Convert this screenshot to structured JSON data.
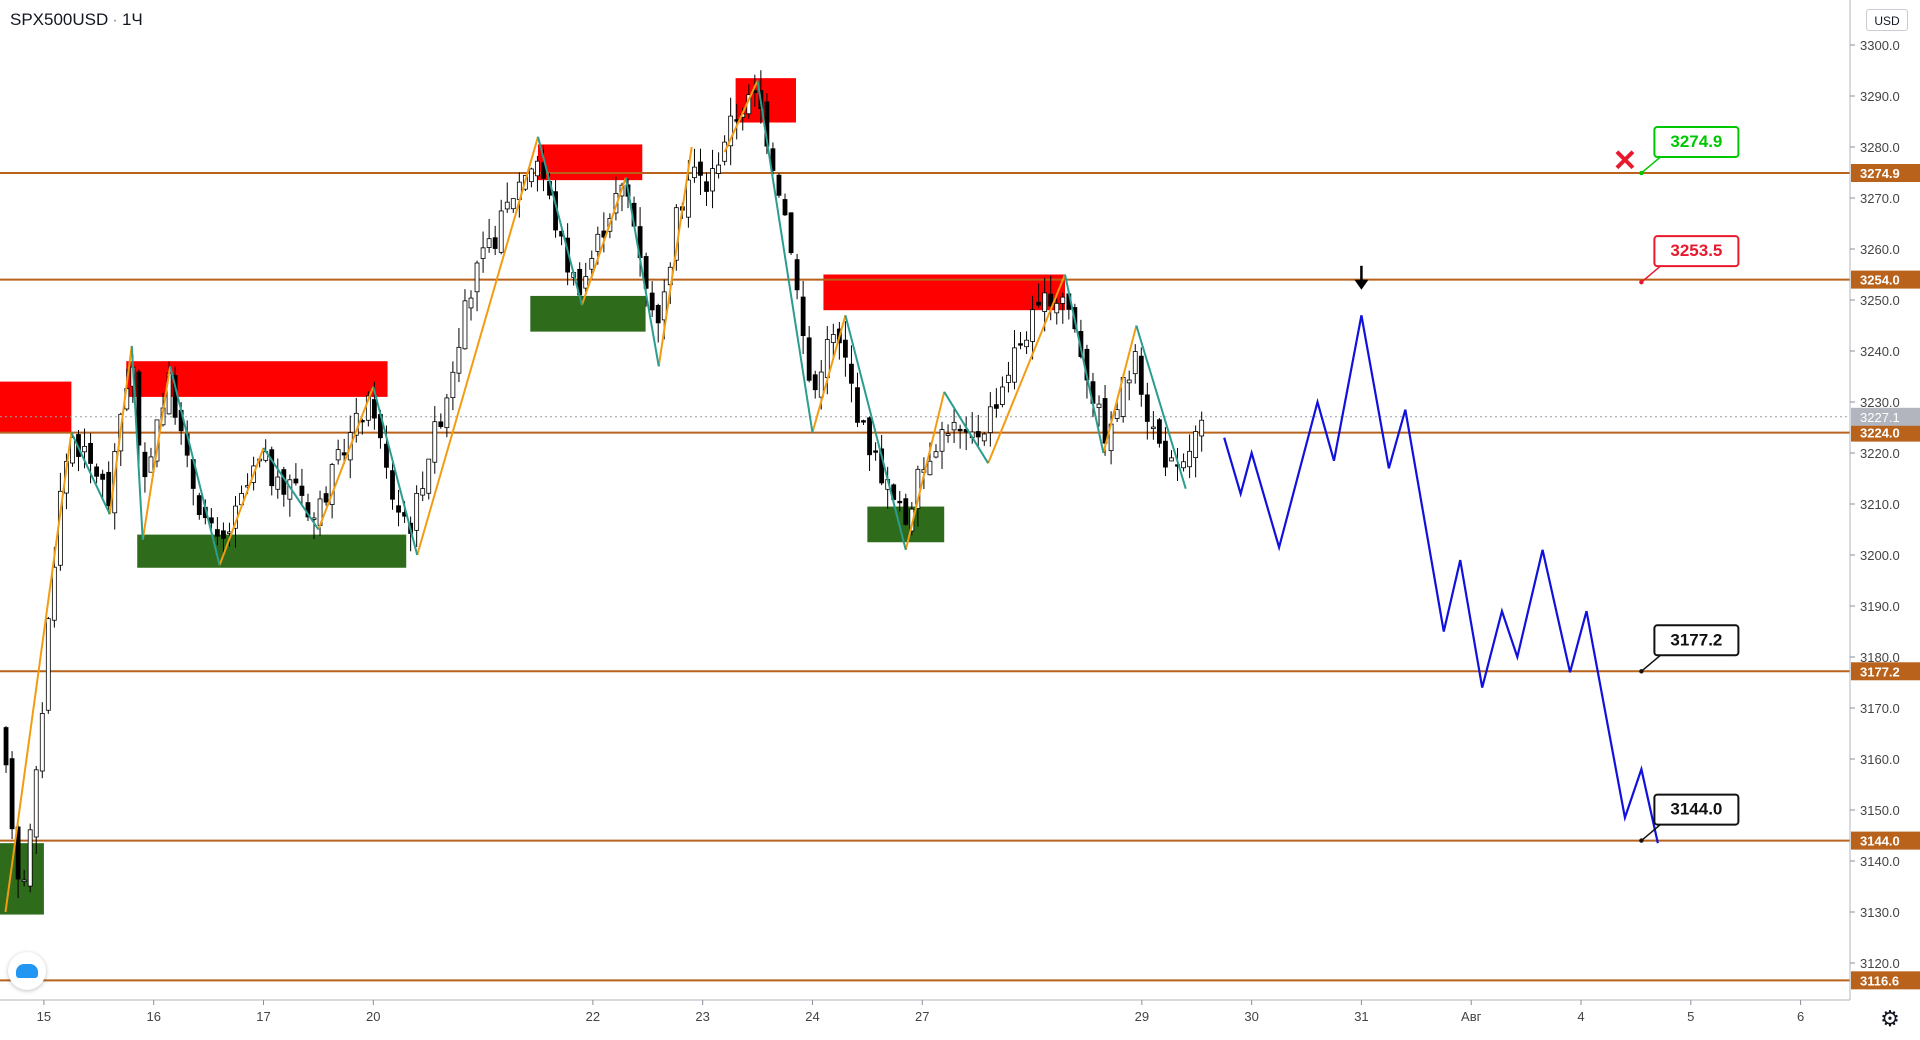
{
  "header": {
    "symbol": "SPX500USD",
    "interval": "1Ч",
    "currency": "USD"
  },
  "icons": {
    "settings": "gear-icon",
    "logo": "tradingview-logo",
    "invalidated_marker": "red-x-icon",
    "down_marker": "down-arrow-icon"
  },
  "colors": {
    "level_line": "#b8621b",
    "supply_zone": "#ff0000",
    "demand_zone": "#2e6b1a",
    "forecast": "#1111dd",
    "zigzag_up": "#f39c12",
    "zigzag_down": "#2a9d8f",
    "target_green": "#00c800",
    "target_red": "#e8192c",
    "target_black": "#111111",
    "current_price_bg": "#b2b5be"
  },
  "chart_data": {
    "type": "candlestick",
    "title": "",
    "xlabel": "",
    "ylabel": "",
    "ylim": [
      3110,
      3305
    ],
    "price_ticks": [
      3120.0,
      3130.0,
      3140.0,
      3150.0,
      3160.0,
      3170.0,
      3180.0,
      3190.0,
      3200.0,
      3210.0,
      3220.0,
      3230.0,
      3240.0,
      3250.0,
      3260.0,
      3270.0,
      3280.0,
      3290.0,
      3300.0
    ],
    "price_tick_labels": [
      "3120.0",
      "3130.0",
      "3140.0",
      "3150.0",
      "3160.0",
      "3170.0",
      "3180.0",
      "3190.0",
      "3200.0",
      "3210.0",
      "3220.0",
      "3230.0",
      "3240.0",
      "3250.0",
      "3260.0",
      "3270.0",
      "3280.0",
      "3290.0",
      "3300.0"
    ],
    "date_ticks": [
      {
        "label": "15",
        "x": 15
      },
      {
        "label": "16",
        "x": 16
      },
      {
        "label": "17",
        "x": 17
      },
      {
        "label": "20",
        "x": 18
      },
      {
        "label": "22",
        "x": 20
      },
      {
        "label": "23",
        "x": 21
      },
      {
        "label": "24",
        "x": 22
      },
      {
        "label": "27",
        "x": 23
      },
      {
        "label": "29",
        "x": 25
      },
      {
        "label": "30",
        "x": 26
      },
      {
        "label": "31",
        "x": 27
      },
      {
        "label": "Авг",
        "x": 28
      },
      {
        "label": "4",
        "x": 29
      },
      {
        "label": "5",
        "x": 30
      },
      {
        "label": "6",
        "x": 31
      }
    ],
    "xlim": [
      14.6,
      31.45
    ],
    "horizontal_levels": [
      {
        "price": 3274.9,
        "label": "3274.9"
      },
      {
        "price": 3254.0,
        "label": "3254.0"
      },
      {
        "price": 3224.0,
        "label": "3224.0"
      },
      {
        "price": 3177.2,
        "label": "3177.2"
      },
      {
        "price": 3144.0,
        "label": "3144.0"
      },
      {
        "price": 3116.6,
        "label": "3116.6"
      }
    ],
    "current_price": {
      "price": 3227.1,
      "label": "3227.1"
    },
    "targets": [
      {
        "label": "3274.9",
        "price": 3274.9,
        "x": 29.55,
        "style": "green"
      },
      {
        "label": "3253.5",
        "price": 3253.5,
        "x": 29.55,
        "style": "red"
      },
      {
        "label": "3177.2",
        "price": 3177.2,
        "x": 29.55,
        "style": "black"
      },
      {
        "label": "3144.0",
        "price": 3144.0,
        "x": 29.55,
        "style": "black"
      }
    ],
    "markers": [
      {
        "type": "x",
        "x": 29.4,
        "price": 3277.5
      },
      {
        "type": "down-arrow",
        "x": 27.0,
        "price": 3252.0
      }
    ],
    "supply_zones": [
      {
        "x0": 14.6,
        "x1": 15.25,
        "low": 3224.0,
        "high": 3234.0
      },
      {
        "x0": 15.75,
        "x1": 18.13,
        "low": 3231.0,
        "high": 3238.0
      },
      {
        "x0": 19.5,
        "x1": 20.45,
        "low": 3273.5,
        "high": 3280.5
      },
      {
        "x0": 21.3,
        "x1": 21.85,
        "low": 3284.8,
        "high": 3293.5
      },
      {
        "x0": 22.1,
        "x1": 24.3,
        "low": 3248.0,
        "high": 3255.0
      }
    ],
    "demand_zones": [
      {
        "x0": 14.6,
        "x1": 15.0,
        "low": 3129.5,
        "high": 3143.5
      },
      {
        "x0": 15.85,
        "x1": 18.3,
        "low": 3197.5,
        "high": 3204.0
      },
      {
        "x0": 19.43,
        "x1": 20.48,
        "low": 3243.8,
        "high": 3250.8
      },
      {
        "x0": 22.5,
        "x1": 23.2,
        "low": 3202.5,
        "high": 3209.5
      }
    ],
    "forecast_path": [
      {
        "x": 25.75,
        "y": 3223.0
      },
      {
        "x": 25.9,
        "y": 3212.0
      },
      {
        "x": 26.0,
        "y": 3220.0
      },
      {
        "x": 26.25,
        "y": 3201.5
      },
      {
        "x": 26.6,
        "y": 3230.0
      },
      {
        "x": 26.75,
        "y": 3218.5
      },
      {
        "x": 27.0,
        "y": 3247.0
      },
      {
        "x": 27.25,
        "y": 3217.0
      },
      {
        "x": 27.4,
        "y": 3228.5
      },
      {
        "x": 27.75,
        "y": 3185.0
      },
      {
        "x": 27.9,
        "y": 3199.0
      },
      {
        "x": 28.1,
        "y": 3174.0
      },
      {
        "x": 28.28,
        "y": 3189.0
      },
      {
        "x": 28.42,
        "y": 3180.0
      },
      {
        "x": 28.65,
        "y": 3201.0
      },
      {
        "x": 28.9,
        "y": 3177.0
      },
      {
        "x": 29.05,
        "y": 3189.0
      },
      {
        "x": 29.4,
        "y": 3148.5
      },
      {
        "x": 29.55,
        "y": 3158.0
      },
      {
        "x": 29.7,
        "y": 3143.5
      }
    ],
    "zigzag_up_segments": [
      [
        [
          14.65,
          3130
        ],
        [
          15.25,
          3224
        ]
      ],
      [
        [
          15.6,
          3208
        ],
        [
          15.8,
          3241
        ]
      ],
      [
        [
          15.9,
          3203
        ],
        [
          16.15,
          3237
        ]
      ],
      [
        [
          16.6,
          3198
        ],
        [
          17.0,
          3221
        ]
      ],
      [
        [
          17.5,
          3205
        ],
        [
          18.0,
          3233
        ]
      ],
      [
        [
          18.4,
          3200
        ],
        [
          19.5,
          3282
        ]
      ],
      [
        [
          19.9,
          3249
        ],
        [
          20.3,
          3274
        ]
      ],
      [
        [
          20.6,
          3237
        ],
        [
          20.9,
          3280
        ]
      ],
      [
        [
          21.2,
          3279
        ],
        [
          21.5,
          3293
        ]
      ],
      [
        [
          22.0,
          3224
        ],
        [
          22.3,
          3247
        ]
      ],
      [
        [
          22.85,
          3201
        ],
        [
          23.2,
          3232
        ]
      ],
      [
        [
          23.6,
          3218
        ],
        [
          24.3,
          3255
        ]
      ],
      [
        [
          24.65,
          3220
        ],
        [
          24.95,
          3245
        ]
      ]
    ],
    "zigzag_down_segments": [
      [
        [
          15.25,
          3224
        ],
        [
          15.6,
          3208
        ]
      ],
      [
        [
          15.8,
          3241
        ],
        [
          15.9,
          3203
        ]
      ],
      [
        [
          16.15,
          3237
        ],
        [
          16.6,
          3198
        ]
      ],
      [
        [
          17.0,
          3221
        ],
        [
          17.5,
          3205
        ]
      ],
      [
        [
          18.0,
          3233
        ],
        [
          18.4,
          3200
        ]
      ],
      [
        [
          19.5,
          3282
        ],
        [
          19.9,
          3249
        ]
      ],
      [
        [
          20.3,
          3274
        ],
        [
          20.6,
          3237
        ]
      ],
      [
        [
          21.5,
          3293
        ],
        [
          22.0,
          3224
        ]
      ],
      [
        [
          22.3,
          3247
        ],
        [
          22.85,
          3201
        ]
      ],
      [
        [
          23.2,
          3232
        ],
        [
          23.6,
          3218
        ]
      ],
      [
        [
          24.3,
          3255
        ],
        [
          24.65,
          3220
        ]
      ],
      [
        [
          24.95,
          3245
        ],
        [
          25.4,
          3213
        ]
      ]
    ],
    "price_path": [
      [
        14.6,
        3165
      ],
      [
        14.7,
        3150
      ],
      [
        14.78,
        3135
      ],
      [
        14.85,
        3140
      ],
      [
        14.95,
        3160
      ],
      [
        15.05,
        3190
      ],
      [
        15.15,
        3212
      ],
      [
        15.25,
        3224
      ],
      [
        15.4,
        3218
      ],
      [
        15.5,
        3216
      ],
      [
        15.6,
        3210
      ],
      [
        15.7,
        3228
      ],
      [
        15.8,
        3239
      ],
      [
        15.9,
        3210
      ],
      [
        16.0,
        3225
      ],
      [
        16.15,
        3234
      ],
      [
        16.3,
        3218
      ],
      [
        16.45,
        3208
      ],
      [
        16.6,
        3201
      ],
      [
        16.75,
        3208
      ],
      [
        16.9,
        3216
      ],
      [
        17.0,
        3219
      ],
      [
        17.15,
        3212
      ],
      [
        17.3,
        3215
      ],
      [
        17.45,
        3207
      ],
      [
        17.6,
        3214
      ],
      [
        17.75,
        3222
      ],
      [
        17.9,
        3228
      ],
      [
        18.0,
        3230
      ],
      [
        18.1,
        3218
      ],
      [
        18.2,
        3210
      ],
      [
        18.35,
        3206
      ],
      [
        18.5,
        3220
      ],
      [
        18.65,
        3230
      ],
      [
        18.8,
        3245
      ],
      [
        18.95,
        3256
      ],
      [
        19.1,
        3262
      ],
      [
        19.25,
        3270
      ],
      [
        19.4,
        3276
      ],
      [
        19.5,
        3278
      ],
      [
        19.6,
        3270
      ],
      [
        19.7,
        3262
      ],
      [
        19.8,
        3255
      ],
      [
        19.9,
        3253
      ],
      [
        20.05,
        3262
      ],
      [
        20.2,
        3270
      ],
      [
        20.3,
        3272
      ],
      [
        20.45,
        3258
      ],
      [
        20.55,
        3246
      ],
      [
        20.65,
        3250
      ],
      [
        20.75,
        3265
      ],
      [
        20.9,
        3276
      ],
      [
        21.05,
        3272
      ],
      [
        21.2,
        3282
      ],
      [
        21.35,
        3288
      ],
      [
        21.5,
        3290
      ],
      [
        21.6,
        3281
      ],
      [
        21.7,
        3272
      ],
      [
        21.8,
        3262
      ],
      [
        21.9,
        3245
      ],
      [
        22.0,
        3230
      ],
      [
        22.1,
        3240
      ],
      [
        22.2,
        3243
      ],
      [
        22.3,
        3238
      ],
      [
        22.45,
        3225
      ],
      [
        22.6,
        3218
      ],
      [
        22.75,
        3210
      ],
      [
        22.85,
        3207
      ],
      [
        22.95,
        3214
      ],
      [
        23.1,
        3222
      ],
      [
        23.25,
        3226
      ],
      [
        23.4,
        3222
      ],
      [
        23.55,
        3225
      ],
      [
        23.7,
        3232
      ],
      [
        23.85,
        3240
      ],
      [
        24.0,
        3246
      ],
      [
        24.15,
        3250
      ],
      [
        24.3,
        3251
      ],
      [
        24.45,
        3240
      ],
      [
        24.6,
        3228
      ],
      [
        24.7,
        3222
      ],
      [
        24.8,
        3232
      ],
      [
        24.95,
        3238
      ],
      [
        25.05,
        3228
      ],
      [
        25.15,
        3222
      ],
      [
        25.25,
        3218
      ],
      [
        25.35,
        3215
      ],
      [
        25.45,
        3222
      ],
      [
        25.55,
        3225
      ]
    ]
  }
}
